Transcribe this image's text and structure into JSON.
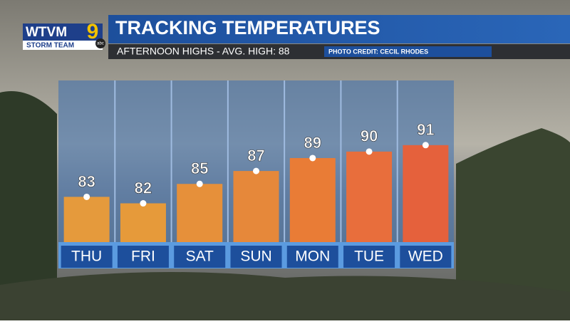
{
  "logo": {
    "station": "WTVM",
    "channel": "9",
    "network": "abc",
    "team": "STORM TEAM"
  },
  "photo_credit": "PHOTO CREDIT: CECIL RHODES",
  "chart_data": {
    "type": "bar",
    "title": "TRACKING TEMPERATURES",
    "subtitle": "AFTERNOON HIGHS - AVG. HIGH: 88",
    "categories": [
      "THU",
      "FRI",
      "SAT",
      "SUN",
      "MON",
      "TUE",
      "WED"
    ],
    "values": [
      83,
      82,
      85,
      87,
      89,
      90,
      91
    ],
    "colors": [
      "#e59a3c",
      "#e69a3a",
      "#e6903a",
      "#e6883a",
      "#e97c36",
      "#e86e3c",
      "#e5613c"
    ],
    "ylim": [
      76,
      101
    ]
  }
}
